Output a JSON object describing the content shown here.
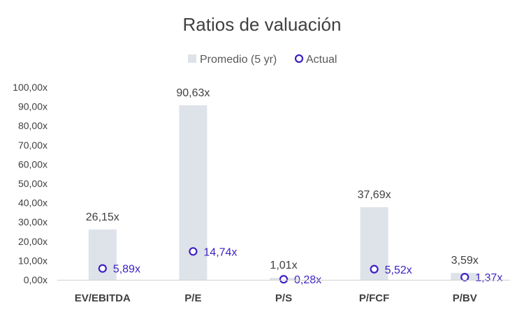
{
  "chart_data": {
    "type": "bar",
    "title": "Ratios de valuación",
    "categories": [
      "EV/EBITDA",
      "P/E",
      "P/S",
      "P/FCF",
      "P/BV"
    ],
    "series": [
      {
        "name": "Promedio (5 yr)",
        "kind": "bar",
        "values": [
          26.15,
          90.63,
          1.01,
          37.69,
          3.59
        ],
        "labels": [
          "26,15x",
          "90,63x",
          "1,01x",
          "37,69x",
          "3,59x"
        ],
        "color": "#dde3e9"
      },
      {
        "name": "Actual",
        "kind": "marker",
        "values": [
          5.89,
          14.74,
          0.28,
          5.52,
          1.37
        ],
        "labels": [
          "5,89x",
          "14,74x",
          "0,28x",
          "5,52x",
          "1,37x"
        ],
        "color": "#3d1fc4"
      }
    ],
    "ylim": [
      0,
      100
    ],
    "yticks": [
      0,
      10,
      20,
      30,
      40,
      50,
      60,
      70,
      80,
      90,
      100
    ],
    "ytick_labels": [
      "0,00x",
      "10,00x",
      "20,00x",
      "30,00x",
      "40,00x",
      "50,00x",
      "60,00x",
      "70,00x",
      "80,00x",
      "90,00x",
      "100,00x"
    ],
    "legend": "top",
    "grid": false,
    "xlabel": "",
    "ylabel": ""
  }
}
